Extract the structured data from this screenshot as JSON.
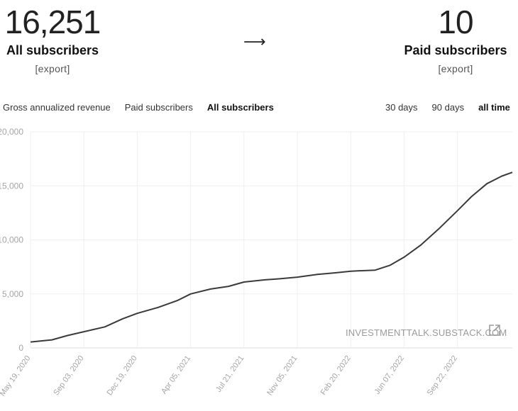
{
  "stats": {
    "all": {
      "value": "16,251",
      "label": "All subscribers",
      "export": "[export]"
    },
    "arrow": "⟶",
    "paid": {
      "value": "10",
      "label": "Paid subscribers",
      "export": "[export]"
    }
  },
  "metric_tabs": [
    {
      "label": "Gross annualized revenue",
      "active": false
    },
    {
      "label": "Paid subscribers",
      "active": false
    },
    {
      "label": "All subscribers",
      "active": true
    }
  ],
  "range_tabs": [
    {
      "label": "30 days",
      "active": false
    },
    {
      "label": "90 days",
      "active": false
    },
    {
      "label": "all time",
      "active": true
    }
  ],
  "watermark": {
    "text": "INVESTMENTTALK.SUBSTACK.COM",
    "icon": "external-link-icon"
  },
  "chart_data": {
    "type": "line",
    "y_ticks": [
      "20,000",
      "15,000",
      "10,000",
      "5,000",
      "0"
    ],
    "ylim": [
      0,
      20000
    ],
    "x_ticks": [
      "May 19, 2020",
      "Sep 03, 2020",
      "Dec 19, 2020",
      "Apr 05, 2021",
      "Jul 21, 2021",
      "Nov 05, 2021",
      "Feb 20, 2022",
      "Jun 07, 2022",
      "Sep 22, 2022"
    ],
    "grid": true,
    "series": [
      {
        "x": [
          "2020-05-19",
          "2020-07-01",
          "2020-08-01",
          "2020-09-03",
          "2020-10-15",
          "2020-11-20",
          "2020-12-19",
          "2021-01-30",
          "2021-03-10",
          "2021-04-05",
          "2021-05-15",
          "2021-06-20",
          "2021-07-21",
          "2021-09-01",
          "2021-10-01",
          "2021-11-05",
          "2021-12-15",
          "2022-01-20",
          "2022-02-20",
          "2022-04-10",
          "2022-05-10",
          "2022-06-07",
          "2022-07-10",
          "2022-08-15",
          "2022-09-22",
          "2022-10-20",
          "2022-11-20",
          "2022-12-20",
          "2023-01-10"
        ],
        "y": [
          550,
          750,
          1150,
          1500,
          1950,
          2700,
          3200,
          3750,
          4400,
          5000,
          5450,
          5700,
          6100,
          6300,
          6400,
          6550,
          6800,
          6950,
          7100,
          7200,
          7650,
          8400,
          9500,
          11000,
          12700,
          14000,
          15200,
          15900,
          16251
        ]
      }
    ]
  }
}
